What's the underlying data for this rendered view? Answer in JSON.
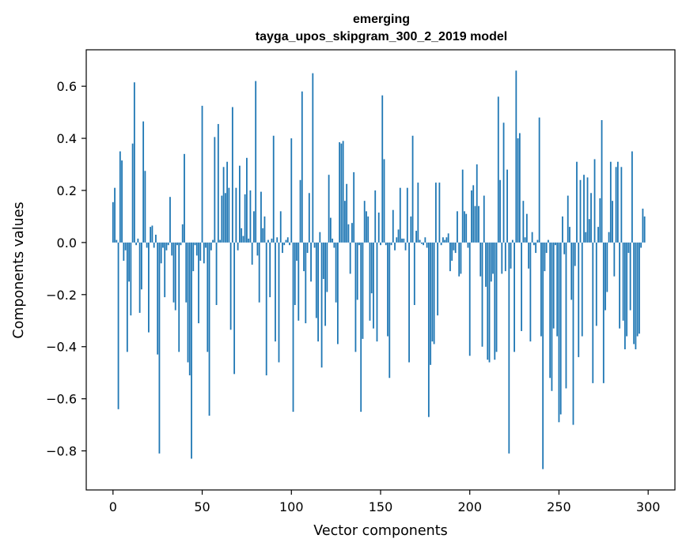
{
  "chart_data": {
    "type": "bar",
    "title": "emerging",
    "subtitle": "tayga_upos_skipgram_300_2_2019 model",
    "xlabel": "Vector components",
    "ylabel": "Components values",
    "xlim": [
      -15,
      315
    ],
    "ylim": [
      -0.95,
      0.74
    ],
    "xticks": [
      0,
      50,
      100,
      150,
      200,
      250,
      300
    ],
    "yticks": [
      -0.8,
      -0.6,
      -0.4,
      -0.2,
      0.0,
      0.2,
      0.4,
      0.6
    ],
    "ytick_labels": [
      "−0.8",
      "−0.6",
      "−0.4",
      "−0.2",
      "0.0",
      "0.2",
      "0.4",
      "0.6"
    ],
    "bar_color": "#1f77b4",
    "grid": false,
    "values": [
      0.155,
      0.21,
      0.01,
      -0.64,
      0.35,
      0.315,
      -0.07,
      -0.03,
      -0.42,
      -0.15,
      -0.28,
      0.38,
      0.615,
      -0.01,
      0.015,
      -0.27,
      -0.18,
      0.465,
      0.275,
      -0.02,
      -0.345,
      0.06,
      0.065,
      -0.02,
      0.03,
      -0.43,
      -0.81,
      -0.08,
      -0.02,
      -0.21,
      -0.03,
      -0.01,
      0.175,
      -0.05,
      -0.23,
      -0.26,
      -0.01,
      -0.42,
      -0.01,
      0.07,
      0.34,
      -0.23,
      -0.46,
      -0.51,
      -0.83,
      -0.11,
      -0.01,
      -0.05,
      -0.31,
      -0.07,
      0.525,
      -0.08,
      -0.02,
      -0.42,
      -0.665,
      -0.03,
      0.01,
      0.405,
      -0.24,
      0.455,
      0.01,
      0.18,
      0.29,
      0.19,
      0.31,
      0.21,
      -0.335,
      0.52,
      -0.505,
      0.21,
      -0.03,
      0.295,
      0.055,
      0.025,
      0.185,
      0.325,
      0.015,
      0.2,
      -0.085,
      0.12,
      0.62,
      -0.05,
      -0.23,
      0.195,
      0.055,
      0.1,
      -0.51,
      0.01,
      -0.21,
      0.015,
      0.41,
      -0.38,
      0.02,
      -0.46,
      0.12,
      -0.04,
      -0.01,
      0.01,
      0.02,
      -0.01,
      0.4,
      -0.65,
      -0.24,
      -0.07,
      -0.3,
      0.24,
      0.58,
      -0.11,
      -0.31,
      -0.04,
      0.19,
      -0.15,
      0.65,
      -0.02,
      -0.29,
      -0.38,
      0.04,
      -0.48,
      -0.14,
      -0.32,
      -0.19,
      0.26,
      0.095,
      0.015,
      -0.02,
      -0.23,
      -0.39,
      0.385,
      0.38,
      0.39,
      0.16,
      0.225,
      0.07,
      -0.12,
      0.075,
      0.27,
      -0.42,
      -0.22,
      -0.01,
      -0.65,
      -0.37,
      0.16,
      0.12,
      0.1,
      -0.3,
      -0.195,
      -0.33,
      0.2,
      -0.38,
      0.115,
      -0.01,
      0.565,
      0.32,
      -0.01,
      -0.36,
      -0.52,
      -0.01,
      0.125,
      -0.03,
      0.02,
      0.05,
      0.21,
      0.015,
      0.015,
      -0.03,
      0.21,
      -0.46,
      0.1,
      0.41,
      -0.24,
      0.045,
      0.23,
      0.01,
      -0.005,
      -0.01,
      0.02,
      -0.02,
      -0.67,
      -0.47,
      -0.38,
      -0.39,
      0.23,
      -0.28,
      0.23,
      -0.01,
      0.02,
      0.01,
      0.02,
      0.035,
      -0.11,
      -0.07,
      -0.03,
      -0.04,
      0.12,
      -0.13,
      -0.12,
      0.28,
      0.12,
      0.11,
      -0.02,
      -0.435,
      0.2,
      0.22,
      0.14,
      0.3,
      0.14,
      -0.13,
      -0.4,
      0.18,
      -0.17,
      -0.45,
      -0.46,
      -0.15,
      -0.12,
      -0.45,
      -0.42,
      0.56,
      0.24,
      -0.12,
      0.46,
      -0.11,
      0.28,
      -0.81,
      -0.1,
      0.01,
      -0.42,
      0.66,
      0.4,
      0.42,
      -0.34,
      0.16,
      0.02,
      0.11,
      -0.1,
      -0.38,
      0.04,
      -0.01,
      -0.04,
      0.01,
      0.48,
      -0.36,
      -0.87,
      -0.11,
      -0.04,
      0.01,
      -0.52,
      -0.57,
      -0.33,
      -0.01,
      -0.36,
      -0.69,
      -0.66,
      0.1,
      -0.045,
      -0.56,
      0.18,
      0.06,
      -0.22,
      -0.7,
      -0.09,
      0.31,
      -0.44,
      0.24,
      -0.36,
      0.26,
      0.04,
      0.25,
      0.09,
      0.19,
      -0.54,
      0.32,
      -0.32,
      0.06,
      0.17,
      0.47,
      -0.54,
      -0.26,
      -0.19,
      0.04,
      0.31,
      0.16,
      -0.13,
      0.29,
      0.31,
      -0.33,
      0.29,
      -0.3,
      -0.41,
      -0.36,
      -0.04,
      -0.26,
      0.35,
      -0.39,
      -0.41,
      -0.36,
      -0.35,
      -0.02,
      0.13,
      0.1
    ]
  }
}
